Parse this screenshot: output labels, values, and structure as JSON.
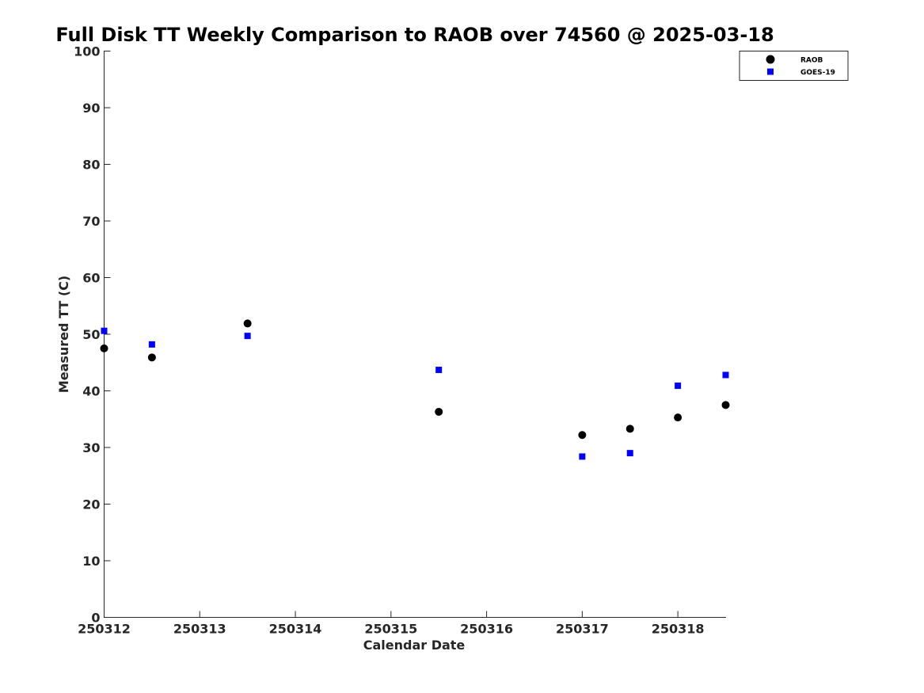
{
  "chart_data": {
    "type": "scatter",
    "title": "Full Disk TT Weekly Comparison to RAOB over 74560 @ 2025-03-18",
    "xlabel": "Calendar Date",
    "ylabel": "Measured TT (C)",
    "xlim": [
      250312,
      250318.5
    ],
    "ylim": [
      0,
      100
    ],
    "x_ticks": [
      250312,
      250313,
      250314,
      250315,
      250316,
      250317,
      250318
    ],
    "x_tick_labels": [
      "250312",
      "250313",
      "250314",
      "250315",
      "250316",
      "250317",
      "250318"
    ],
    "y_ticks": [
      0,
      10,
      20,
      30,
      40,
      50,
      60,
      70,
      80,
      90,
      100
    ],
    "y_tick_labels": [
      "0",
      "10",
      "20",
      "30",
      "40",
      "50",
      "60",
      "70",
      "80",
      "90",
      "100"
    ],
    "grid": false,
    "legend_position": "top-right",
    "series": [
      {
        "name": "RAOB",
        "marker": "circle",
        "color": "#000000",
        "x": [
          250312,
          250312.5,
          250313.5,
          250315.5,
          250317,
          250317.5,
          250318,
          250318.5
        ],
        "y": [
          47.5,
          45.9,
          51.9,
          36.3,
          32.2,
          33.3,
          35.3,
          37.5
        ]
      },
      {
        "name": "GOES-19",
        "marker": "square",
        "color": "#0000ff",
        "x": [
          250312,
          250312.5,
          250313.5,
          250315.5,
          250317,
          250317.5,
          250318,
          250318.5
        ],
        "y": [
          50.6,
          48.2,
          49.7,
          43.7,
          28.4,
          29.0,
          40.9,
          42.8
        ]
      }
    ]
  }
}
